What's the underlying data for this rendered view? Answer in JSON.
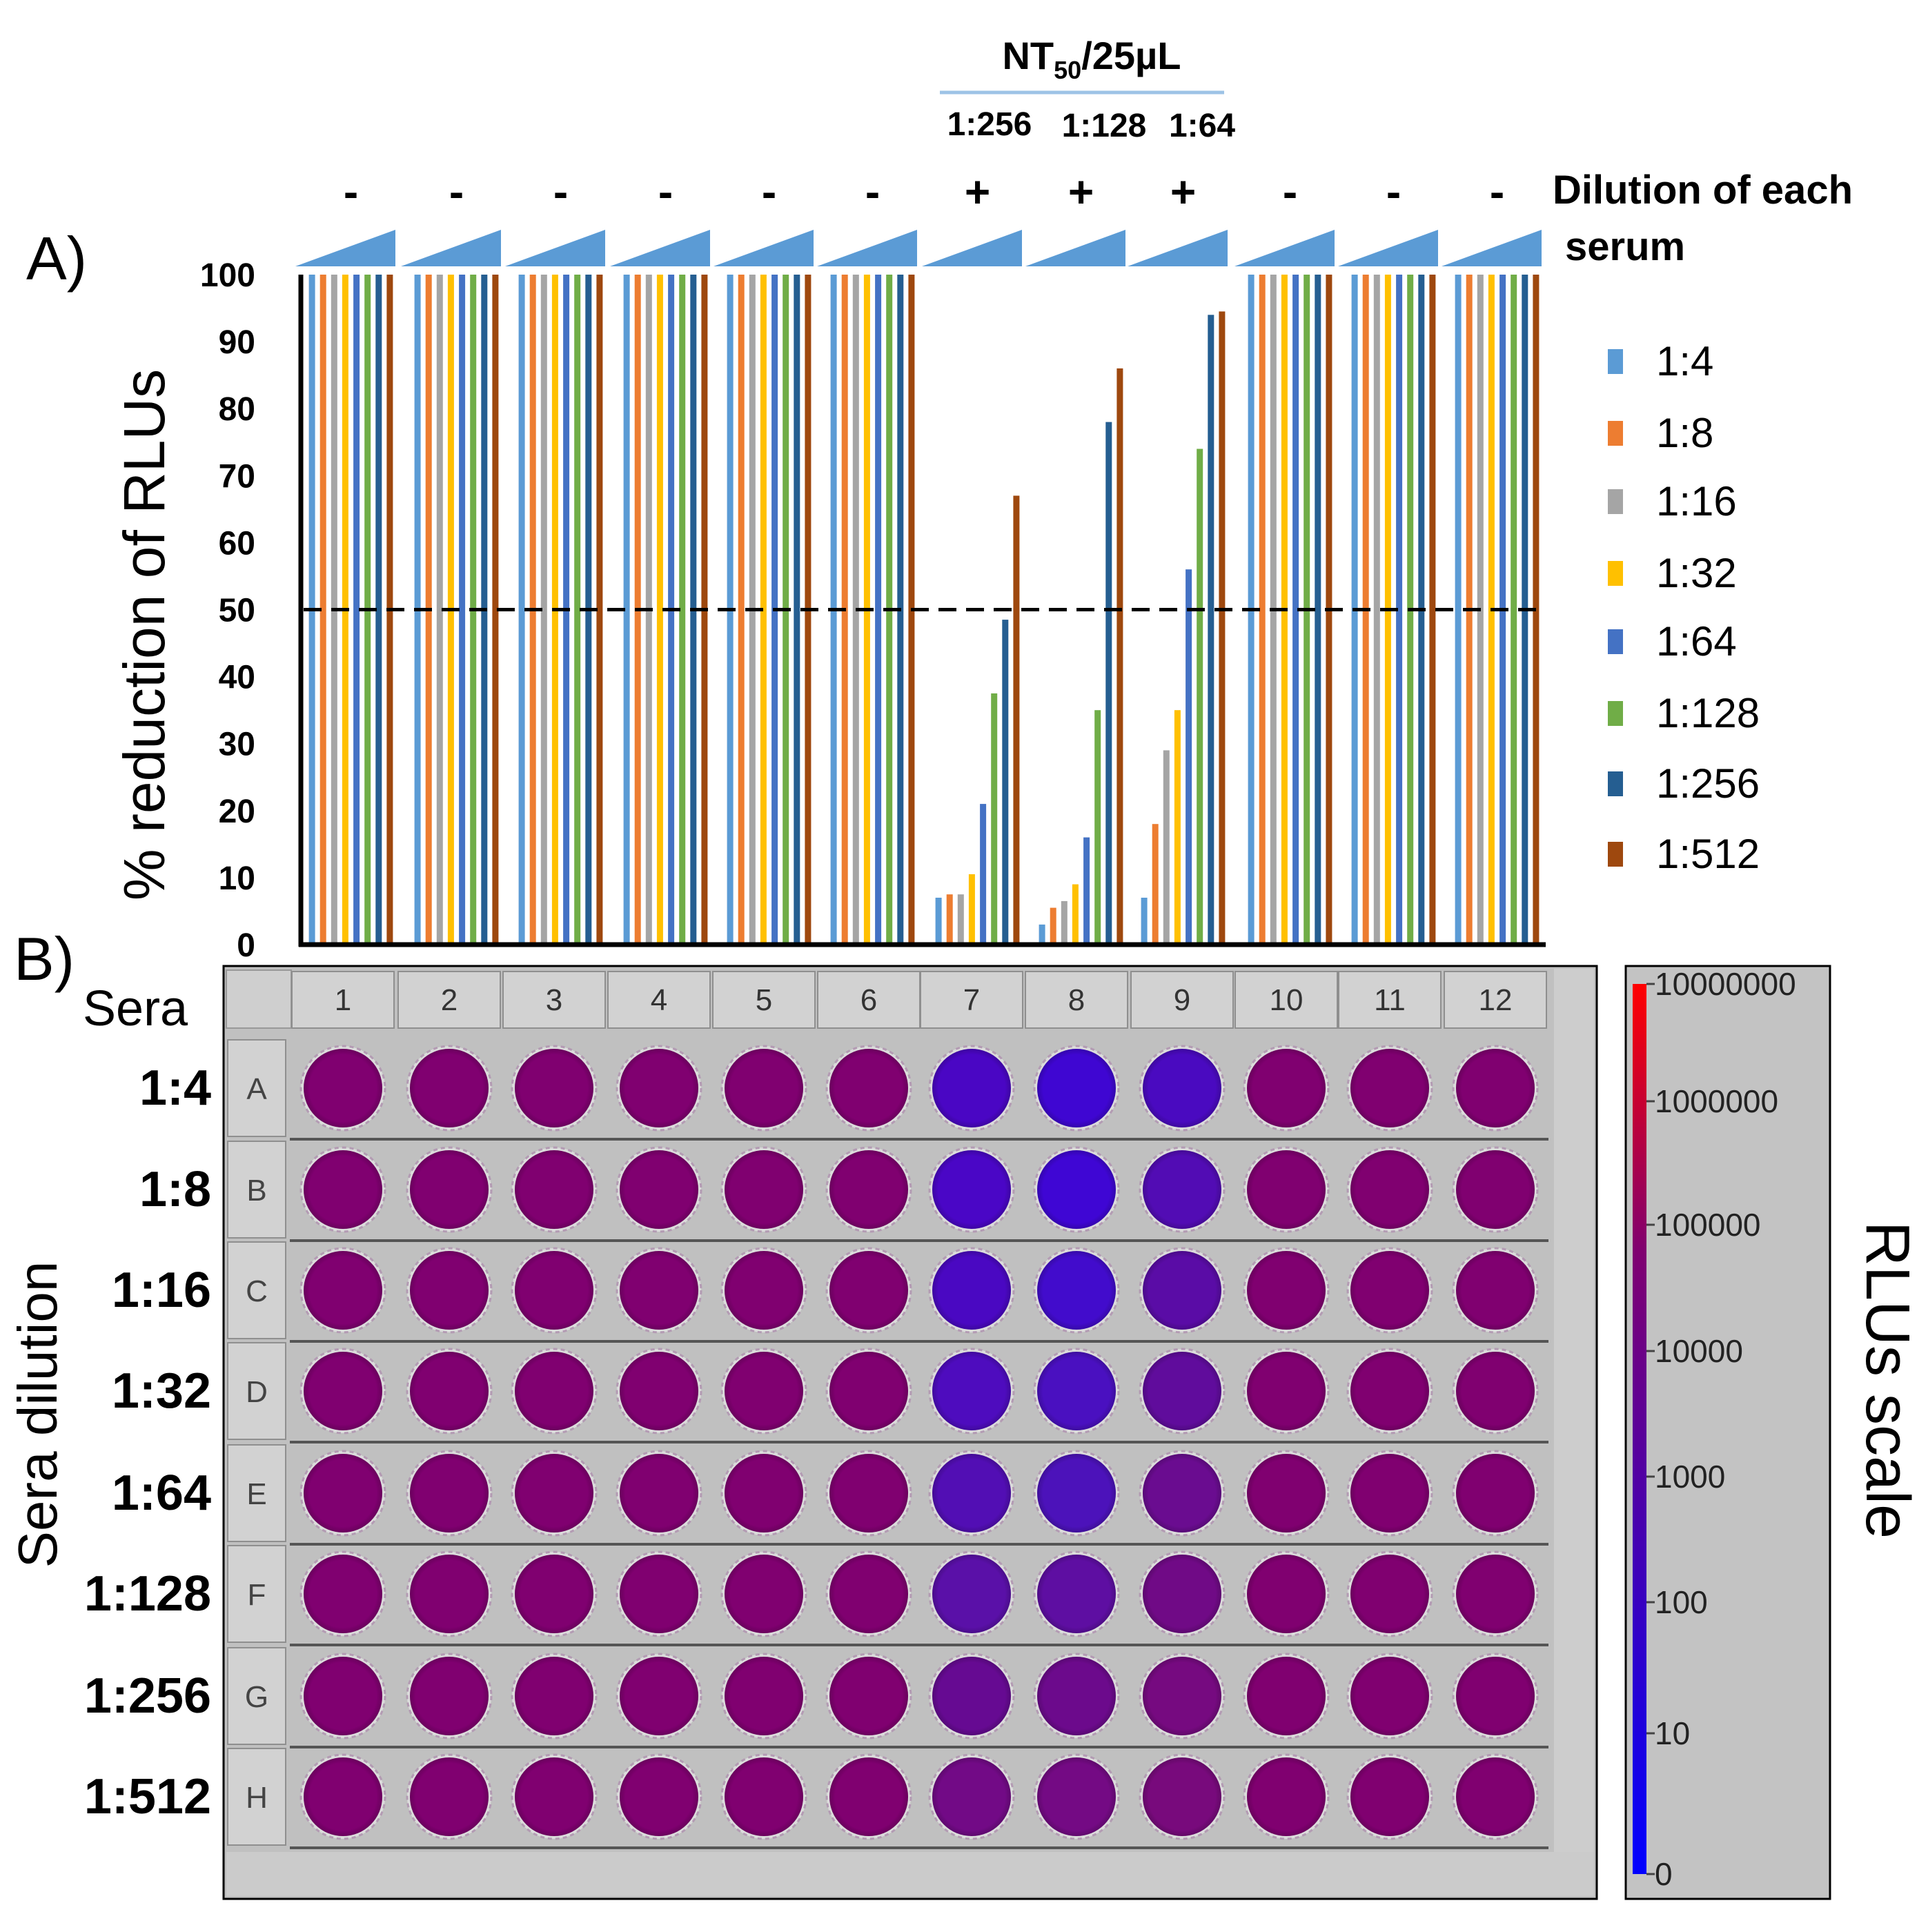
{
  "panel_a_label": "A)",
  "panel_b_label": "B)",
  "nt50": {
    "main": "NT",
    "sub": "50",
    "tail": "/25µL"
  },
  "nt50_titers": [
    "1:256",
    "1:128",
    "1:64"
  ],
  "serum_signs": [
    "-",
    "-",
    "-",
    "-",
    "-",
    "-",
    "+",
    "+",
    "+",
    "-",
    "-",
    "-"
  ],
  "dilution_caption": {
    "line1": "Dilution of each",
    "line2": "serum"
  },
  "colors": {
    "triangle": "#5b9bd5",
    "dashed": "#000000",
    "plate_bg": "#c0c0c0",
    "header_cell": "#d2d2d2",
    "colorbar_bg": "#c3c3c3"
  },
  "chart_data": {
    "type": "bar",
    "title": "",
    "xlabel": "",
    "ylabel": "% reduction of RLUs",
    "ylim": [
      0,
      100
    ],
    "yticks": [
      0,
      10,
      20,
      30,
      40,
      50,
      60,
      70,
      80,
      90,
      100
    ],
    "threshold": 50,
    "grid": false,
    "categories": [
      "1",
      "2",
      "3",
      "4",
      "5",
      "6",
      "7",
      "8",
      "9",
      "10",
      "11",
      "12"
    ],
    "legend_position": "right",
    "series": [
      {
        "name": "1:4",
        "color": "#5b9bd5",
        "values": [
          100,
          100,
          100,
          100,
          100,
          100,
          7,
          3,
          7,
          100,
          100,
          100
        ]
      },
      {
        "name": "1:8",
        "color": "#ed7d31",
        "values": [
          100,
          100,
          100,
          100,
          100,
          100,
          7.5,
          5.5,
          18,
          100,
          100,
          100
        ]
      },
      {
        "name": "1:16",
        "color": "#a5a5a5",
        "values": [
          100,
          100,
          100,
          100,
          100,
          100,
          7.5,
          6.5,
          29,
          100,
          100,
          100
        ]
      },
      {
        "name": "1:32",
        "color": "#ffc000",
        "values": [
          100,
          100,
          100,
          100,
          100,
          100,
          10.5,
          9,
          35,
          100,
          100,
          100
        ]
      },
      {
        "name": "1:64",
        "color": "#4472c4",
        "values": [
          100,
          100,
          100,
          100,
          100,
          100,
          21,
          16,
          56,
          100,
          100,
          100
        ]
      },
      {
        "name": "1:128",
        "color": "#70ad47",
        "values": [
          100,
          100,
          100,
          100,
          100,
          100,
          37.5,
          35,
          74,
          100,
          100,
          100
        ]
      },
      {
        "name": "1:256",
        "color": "#255e91",
        "values": [
          100,
          100,
          100,
          100,
          100,
          100,
          48.5,
          78,
          94,
          100,
          100,
          100
        ]
      },
      {
        "name": "1:512",
        "color": "#9e480e",
        "values": [
          100,
          100,
          100,
          100,
          100,
          100,
          67,
          86,
          94.5,
          100,
          100,
          100
        ]
      }
    ]
  },
  "plate": {
    "corner_label": "Sera",
    "side_label": "Sera dilution",
    "columns": [
      "1",
      "2",
      "3",
      "4",
      "5",
      "6",
      "7",
      "8",
      "9",
      "10",
      "11",
      "12"
    ],
    "rows": [
      "A",
      "B",
      "C",
      "D",
      "E",
      "F",
      "G",
      "H"
    ],
    "row_dilutions": [
      "1:4",
      "1:8",
      "1:16",
      "1:32",
      "1:64",
      "1:128",
      "1:256",
      "1:512"
    ],
    "base_color": "#800070",
    "well_colors": {
      "A": {
        "7": "#4a06c4",
        "8": "#3f06d2",
        "9": "#4a0ac0"
      },
      "B": {
        "7": "#4a06c6",
        "8": "#3f06d4",
        "9": "#520cb4"
      },
      "C": {
        "7": "#4a08c2",
        "8": "#420ccc",
        "9": "#5a0ca6"
      },
      "D": {
        "7": "#4e0cbe",
        "8": "#4a10c0",
        "9": "#600c9c"
      },
      "E": {
        "7": "#520eb4",
        "8": "#4c12ba",
        "9": "#6a0c90"
      },
      "F": {
        "7": "#5a10a8",
        "8": "#5e0ea2",
        "9": "#700a86"
      },
      "G": {
        "7": "#660a92",
        "8": "#6c0a8c",
        "9": "#760a80"
      },
      "H": {
        "7": "#720a86",
        "8": "#740a84",
        "9": "#780a7c"
      }
    }
  },
  "colorbar": {
    "title": "RLUs scale",
    "ticks": [
      "10000000",
      "1000000",
      "100000",
      "10000",
      "1000",
      "100",
      "10",
      "0"
    ]
  }
}
